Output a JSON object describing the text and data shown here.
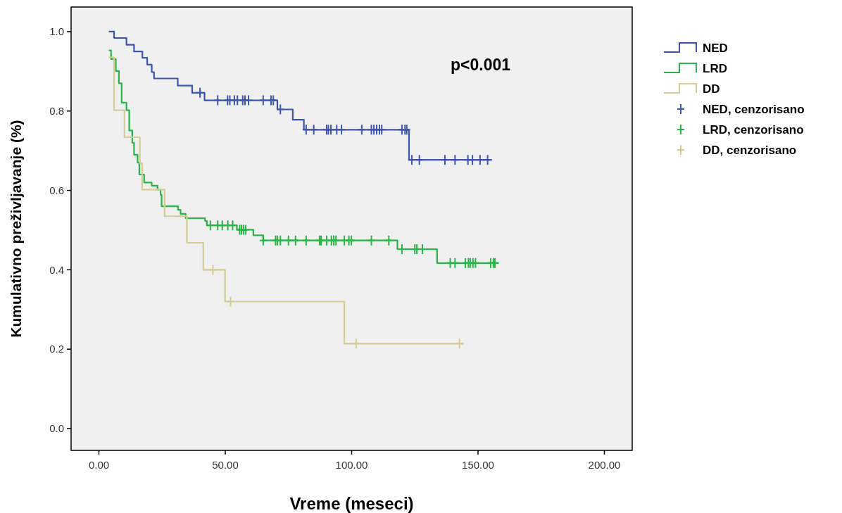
{
  "chart_data": {
    "type": "step",
    "xlabel": "Vreme (meseci)",
    "ylabel": "Kumulativno preživljavanje (%)",
    "annotations": [
      "p<0.001"
    ],
    "legend": "right",
    "xlim": [
      -11,
      211
    ],
    "ylim": [
      -0.055,
      1.062
    ],
    "xticks": [
      {
        "value": 0,
        "label": "0.00"
      },
      {
        "value": 50,
        "label": "50.00"
      },
      {
        "value": 100,
        "label": "100.00"
      },
      {
        "value": 150,
        "label": "150.00"
      },
      {
        "value": 200,
        "label": "200.00"
      }
    ],
    "yticks": [
      {
        "value": 0,
        "label": "0.0"
      },
      {
        "value": 0.2,
        "label": "0.2"
      },
      {
        "value": 0.4,
        "label": "0.4"
      },
      {
        "value": 0.6,
        "label": "0.6"
      },
      {
        "value": 0.8,
        "label": "0.8"
      },
      {
        "value": 1,
        "label": "1.0"
      }
    ],
    "series": [
      {
        "name": "NED",
        "color": "#3d55b0",
        "x": [
          3.9,
          6.0,
          10.9,
          13.9,
          17.2,
          19.1,
          20.9,
          21.8,
          31.2,
          36.9,
          41.8,
          70.6,
          76.7,
          81.1,
          122.7,
          155.5
        ],
        "values": [
          1.0,
          0.984,
          0.967,
          0.95,
          0.934,
          0.917,
          0.898,
          0.882,
          0.864,
          0.846,
          0.827,
          0.804,
          0.778,
          0.753,
          0.677,
          0.677
        ]
      },
      {
        "name": "LRD",
        "color": "#28b446",
        "x": [
          3.9,
          4.8,
          6.7,
          7.9,
          9.0,
          10.9,
          12.0,
          13.2,
          13.9,
          15.3,
          16.0,
          17.9,
          20.9,
          23.2,
          24.4,
          24.8,
          31.3,
          32.3,
          34.3,
          42.0,
          42.7,
          54.6,
          61.1,
          65.0,
          118.1,
          133.8,
          158.2
        ],
        "values": [
          0.953,
          0.931,
          0.901,
          0.87,
          0.821,
          0.802,
          0.751,
          0.72,
          0.69,
          0.67,
          0.64,
          0.62,
          0.612,
          0.602,
          0.589,
          0.56,
          0.551,
          0.541,
          0.53,
          0.523,
          0.512,
          0.501,
          0.487,
          0.474,
          0.452,
          0.417,
          0.417
        ]
      },
      {
        "name": "DD",
        "color": "#d4cc94",
        "x": [
          3.9,
          6.0,
          10.1,
          16.2,
          17.1,
          26.0,
          34.8,
          41.3,
          49.9,
          97.1,
          144.3
        ],
        "values": [
          0.935,
          0.802,
          0.734,
          0.668,
          0.602,
          0.535,
          0.468,
          0.4,
          0.32,
          0.214,
          0.214
        ]
      },
      {
        "type": "scatter",
        "marker": "cross",
        "name": "NED, cenzorisano",
        "color": "#3d55b0",
        "x": [
          40.0,
          47.0,
          50.9,
          51.8,
          53.6,
          54.8,
          56.9,
          57.8,
          59.2,
          65.0,
          68.1,
          69.0,
          71.8,
          82.0,
          85.0,
          90.1,
          90.8,
          91.8,
          94.1,
          96.0,
          104.0,
          107.8,
          108.8,
          109.9,
          111.0,
          111.9,
          119.9,
          121.1,
          121.8,
          123.8,
          126.8,
          136.9,
          140.9,
          146.0,
          147.8,
          150.8,
          153.8
        ],
        "values": [
          0.846,
          0.827,
          0.827,
          0.827,
          0.827,
          0.827,
          0.827,
          0.827,
          0.827,
          0.827,
          0.827,
          0.827,
          0.804,
          0.753,
          0.753,
          0.753,
          0.753,
          0.753,
          0.753,
          0.753,
          0.753,
          0.753,
          0.753,
          0.753,
          0.753,
          0.753,
          0.753,
          0.753,
          0.753,
          0.677,
          0.677,
          0.677,
          0.677,
          0.677,
          0.677,
          0.677,
          0.677
        ]
      },
      {
        "type": "scatter",
        "marker": "cross",
        "name": "LRD, cenzorisano",
        "color": "#28b446",
        "x": [
          44.1,
          47.0,
          48.8,
          51.0,
          52.9,
          55.7,
          56.4,
          57.2,
          58.1,
          65.0,
          69.9,
          70.6,
          71.8,
          75.0,
          77.8,
          82.0,
          87.3,
          87.9,
          90.1,
          92.0,
          92.9,
          93.8,
          97.1,
          98.9,
          99.9,
          107.8,
          114.7,
          119.9,
          125.0,
          125.8,
          128.0,
          139.0,
          140.9,
          145.0,
          146.2,
          146.9,
          148.0,
          149.0,
          155.0,
          156.1,
          156.7
        ],
        "values": [
          0.512,
          0.512,
          0.512,
          0.512,
          0.512,
          0.501,
          0.501,
          0.501,
          0.501,
          0.474,
          0.474,
          0.474,
          0.474,
          0.474,
          0.474,
          0.474,
          0.474,
          0.474,
          0.474,
          0.474,
          0.474,
          0.474,
          0.474,
          0.474,
          0.474,
          0.474,
          0.474,
          0.452,
          0.452,
          0.452,
          0.452,
          0.417,
          0.417,
          0.417,
          0.417,
          0.417,
          0.417,
          0.417,
          0.417,
          0.417,
          0.417
        ]
      },
      {
        "type": "scatter",
        "marker": "cross",
        "name": "DD, cenzorisano",
        "color": "#d4cc94",
        "x": [
          45.1,
          52.1,
          101.8,
          142.7
        ],
        "values": [
          0.4,
          0.32,
          0.214,
          0.214
        ]
      }
    ]
  }
}
